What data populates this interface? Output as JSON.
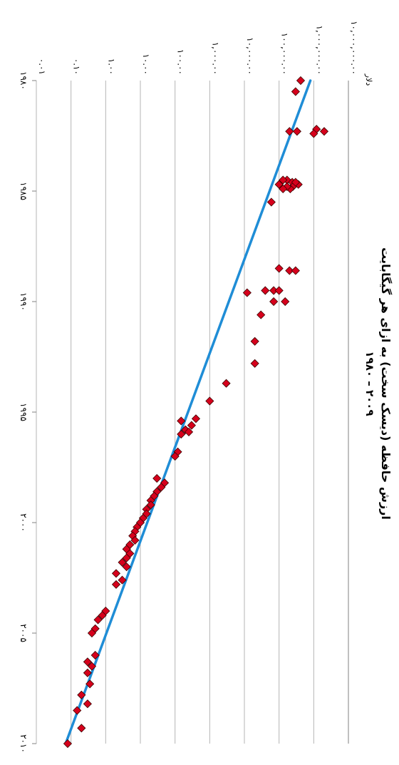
{
  "chart_data": {
    "type": "scatter",
    "title": "ارزش حافظه (دیسک سخت) به ازای هر گیگابایت",
    "subtitle": "۱۹۸۰ – ۲۰۰۹",
    "ylabel": "دلار",
    "y_scale": "log",
    "xlim": [
      1980,
      2010
    ],
    "ylim": [
      0.01,
      10000000
    ],
    "x_ticks": [
      1980,
      1985,
      1990,
      1995,
      2000,
      2005,
      2010
    ],
    "x_tick_labels": [
      "۱۹۸۰",
      "۱۹۸۵",
      "۱۹۹۰",
      "۱۹۹۵",
      "۲۰۰۰",
      "۲۰۰۵",
      "۲۰۱۰"
    ],
    "y_ticks": [
      0.01,
      0.1,
      1,
      10,
      100,
      1000,
      10000,
      100000,
      1000000,
      10000000
    ],
    "y_tick_labels": [
      "۰.۰۱",
      "۰.۱۰",
      "۱.۰۰",
      "۱۰.۰۰",
      "۱۰۰.۰۰",
      "۱,۰۰۰.۰۰",
      "۱۰,۰۰۰.۰۰",
      "۱۰۰,۰۰۰.۰۰",
      "۱,۰۰۰,۰۰۰.۰۰",
      "۱۰,۰۰۰,۰۰۰.۰۰"
    ],
    "grid": true,
    "series": [
      {
        "marker": "diamond",
        "color": "#d6001c",
        "points": [
          [
            1980.0,
            420000
          ],
          [
            1980.5,
            300000
          ],
          [
            1982.3,
            200000
          ],
          [
            1982.3,
            330000
          ],
          [
            1982.2,
            1200000
          ],
          [
            1982.3,
            2000000
          ],
          [
            1982.4,
            1000000
          ],
          [
            1984.5,
            170000
          ],
          [
            1984.6,
            240000
          ],
          [
            1984.7,
            360000
          ],
          [
            1984.8,
            250000
          ],
          [
            1984.5,
            130000
          ],
          [
            1984.7,
            100000
          ],
          [
            1984.9,
            210000
          ],
          [
            1984.6,
            300000
          ],
          [
            1984.8,
            170000
          ],
          [
            1984.9,
            130000
          ],
          [
            1985.5,
            60000
          ],
          [
            1988.5,
            100000
          ],
          [
            1988.6,
            200000
          ],
          [
            1988.6,
            300000
          ],
          [
            1989.5,
            40000
          ],
          [
            1989.5,
            70000
          ],
          [
            1989.5,
            100000
          ],
          [
            1989.6,
            12000
          ],
          [
            1990.0,
            70000
          ],
          [
            1990.0,
            150000
          ],
          [
            1990.6,
            30000
          ],
          [
            1991.8,
            20000
          ],
          [
            1992.8,
            20000
          ],
          [
            1993.7,
            3000
          ],
          [
            1994.5,
            1000
          ],
          [
            1995.3,
            400
          ],
          [
            1995.4,
            150
          ],
          [
            1995.6,
            300
          ],
          [
            1995.8,
            200
          ],
          [
            1995.9,
            250
          ],
          [
            1996.0,
            150
          ],
          [
            1996.8,
            120
          ],
          [
            1997.0,
            100
          ],
          [
            1998.0,
            30
          ],
          [
            1998.2,
            50
          ],
          [
            1998.4,
            40
          ],
          [
            1998.6,
            30
          ],
          [
            1998.8,
            25
          ],
          [
            1999.0,
            20
          ],
          [
            1999.2,
            20
          ],
          [
            1999.4,
            15
          ],
          [
            1999.6,
            15
          ],
          [
            1999.8,
            12
          ],
          [
            2000.0,
            10
          ],
          [
            2000.2,
            8
          ],
          [
            2000.4,
            7
          ],
          [
            2000.6,
            6
          ],
          [
            2000.8,
            7
          ],
          [
            2001.0,
            5
          ],
          [
            2001.2,
            4
          ],
          [
            2001.4,
            5
          ],
          [
            2001.6,
            4
          ],
          [
            2001.8,
            3
          ],
          [
            2002.0,
            4
          ],
          [
            2002.3,
            2
          ],
          [
            2002.6,
            3
          ],
          [
            2002.8,
            2
          ],
          [
            2004.0,
            1
          ],
          [
            2004.2,
            0.8
          ],
          [
            2004.4,
            0.6
          ],
          [
            2004.8,
            0.5
          ],
          [
            2005.0,
            0.4
          ],
          [
            2006.0,
            0.5
          ],
          [
            2006.3,
            0.3
          ],
          [
            2006.5,
            0.4
          ],
          [
            2006.8,
            0.3
          ],
          [
            2007.3,
            0.35
          ],
          [
            2007.8,
            0.2
          ],
          [
            2008.2,
            0.3
          ],
          [
            2008.5,
            0.15
          ],
          [
            2009.3,
            0.2
          ],
          [
            2010.0,
            0.08
          ]
        ]
      },
      {
        "style": "trendline",
        "color": "#1f8dd6",
        "x": [
          1980,
          2010
        ],
        "values": [
          800000,
          0.07
        ]
      }
    ]
  }
}
